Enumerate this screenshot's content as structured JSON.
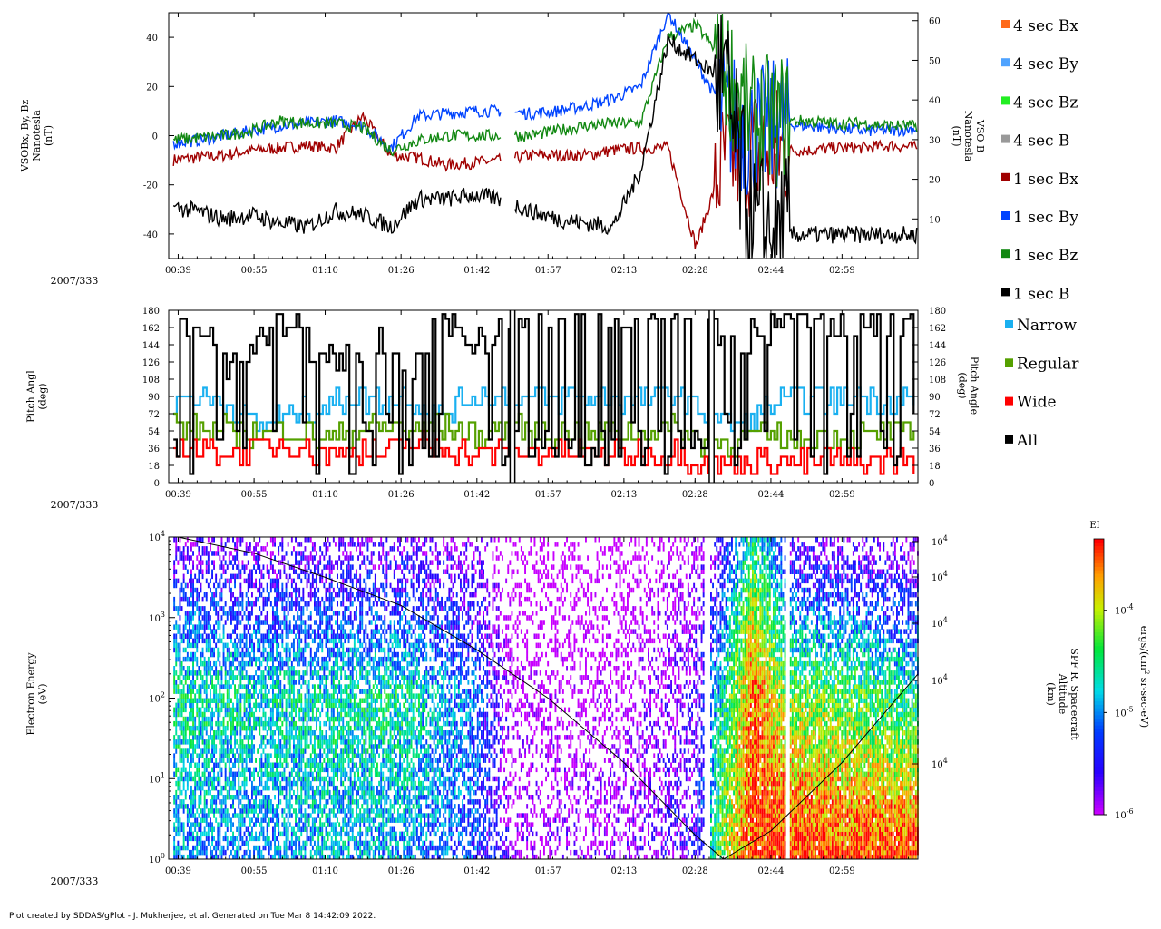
{
  "chart_data": [
    {
      "type": "line",
      "panel": "magnetometer",
      "ylabel_left": [
        "VSOBx, By, Bz",
        "Nanotesla",
        "(nT)"
      ],
      "ylabel_right": [
        "VSO B",
        "Nanotesla",
        "(nT)"
      ],
      "ylim_left": [
        -50,
        50
      ],
      "yticks_left": [
        -40,
        -20,
        0,
        20,
        40
      ],
      "ylim_right": [
        0,
        62
      ],
      "yticks_right": [
        10,
        20,
        30,
        40,
        50,
        60
      ],
      "date_label": "2007/333",
      "xlim": [
        "00:37",
        "03:15"
      ],
      "xticks": [
        "00:39",
        "00:55",
        "01:10",
        "01:26",
        "01:42",
        "01:57",
        "02:13",
        "02:28",
        "02:44",
        "02:59"
      ],
      "gap": [
        "01:47",
        "01:50"
      ],
      "legend": [
        "4 sec Bx",
        "4 sec By",
        "4 sec Bz",
        "4 sec B",
        "1 sec Bx",
        "1 sec By",
        "1 sec Bz",
        "1 sec B"
      ],
      "legend_colors": [
        "#ff6a1a",
        "#4fa3ff",
        "#22ee22",
        "#999999",
        "#a00000",
        "#0044ff",
        "#118811",
        "#000000"
      ],
      "series": [
        {
          "name": "1 sec Bx",
          "color": "#a00000",
          "values": [
            -10,
            -9,
            -8,
            -6,
            -5,
            -4,
            -5,
            8,
            -8,
            -9,
            -12,
            -11,
            -10,
            -8,
            -8,
            -8,
            -6,
            -5,
            -5,
            -45,
            -10,
            -6,
            -6,
            -6,
            -5,
            -5,
            -4,
            -5
          ]
        },
        {
          "name": "1 sec By",
          "color": "#0044ff",
          "values": [
            -3,
            -2,
            0,
            2,
            4,
            5,
            6,
            4,
            -5,
            8,
            9,
            10,
            10,
            9,
            10,
            12,
            15,
            20,
            50,
            30,
            10,
            0,
            5,
            4,
            3,
            2,
            2,
            3
          ]
        },
        {
          "name": "1 sec Bz",
          "color": "#118811",
          "values": [
            -2,
            -1,
            0,
            2,
            6,
            5,
            5,
            3,
            -6,
            -2,
            0,
            0,
            0,
            0,
            2,
            4,
            5,
            5,
            40,
            45,
            30,
            5,
            6,
            6,
            5,
            5,
            4,
            4
          ]
        },
        {
          "name": "1 sec B",
          "color": "#000000",
          "axis": "right",
          "values": [
            13,
            12,
            10,
            11,
            9,
            8,
            12,
            11,
            8,
            15,
            15,
            16,
            15,
            12,
            10,
            9,
            8,
            22,
            55,
            50,
            45,
            6,
            6,
            6,
            6,
            6,
            6,
            6
          ]
        }
      ]
    },
    {
      "type": "line",
      "panel": "pitch-angle",
      "ylabel_left": [
        "Pitch Angl",
        "(deg)"
      ],
      "ylabel_right": [
        "Pitch Angle",
        "(deg)"
      ],
      "ylim": [
        0,
        180
      ],
      "yticks": [
        0,
        18,
        36,
        54,
        72,
        90,
        108,
        126,
        144,
        162,
        180
      ],
      "date_label": "2007/333",
      "xlim": [
        "00:37",
        "03:15"
      ],
      "xticks": [
        "00:39",
        "00:55",
        "01:10",
        "01:26",
        "01:42",
        "01:57",
        "02:13",
        "02:28",
        "02:44",
        "02:59"
      ],
      "gaps": [
        [
          "01:49",
          "01:50"
        ],
        [
          "02:31",
          "02:32"
        ]
      ],
      "legend": [
        "Narrow",
        "Regular",
        "Wide",
        "All"
      ],
      "legend_colors": [
        "#1ab0f0",
        "#55a000",
        "#ff0000",
        "#000000"
      ],
      "series": [
        {
          "name": "Narrow",
          "color": "#1ab0f0",
          "values": [
            85,
            90,
            80,
            60,
            72,
            80,
            90,
            85,
            90,
            70,
            90,
            90,
            90,
            88,
            90,
            85,
            90,
            92,
            70,
            60,
            80,
            90,
            85,
            90,
            88,
            85
          ]
        },
        {
          "name": "Regular",
          "color": "#55a000",
          "values": [
            60,
            54,
            55,
            50,
            54,
            48,
            50,
            60,
            54,
            60,
            50,
            55,
            54,
            52,
            50,
            55,
            54,
            55,
            40,
            45,
            48,
            45,
            50,
            48,
            50,
            50
          ]
        },
        {
          "name": "Wide",
          "color": "#ff0000",
          "values": [
            40,
            36,
            30,
            36,
            40,
            30,
            35,
            30,
            40,
            36,
            30,
            32,
            30,
            32,
            30,
            30,
            30,
            30,
            15,
            20,
            25,
            20,
            25,
            20,
            25,
            22
          ]
        },
        {
          "name": "All",
          "color": "#000000",
          "values": [
            170,
            160,
            120,
            150,
            170,
            140,
            130,
            150,
            100,
            170,
            150,
            160,
            150,
            140,
            150,
            160,
            150,
            120,
            170,
            150,
            160,
            170,
            165,
            170,
            168,
            172
          ]
        }
      ]
    },
    {
      "type": "heatmap",
      "panel": "electron-spectrogram",
      "ylabel_left": [
        "Electron Energy",
        "(eV)"
      ],
      "ylabel_right": [
        "SPF R. Spacecraft",
        "Altitude",
        "(km)"
      ],
      "ylim": [
        1,
        10000
      ],
      "yscale": "log",
      "yticks_left": [
        "10^0",
        "10^1",
        "10^2",
        "10^3",
        "10^4"
      ],
      "yticks_right": [
        "10^4",
        "10^4",
        "10^4",
        "10^4",
        "10^4"
      ],
      "date_label": "2007/333",
      "xlim": [
        "00:37",
        "03:15"
      ],
      "xticks": [
        "00:39",
        "00:55",
        "01:10",
        "01:26",
        "01:42",
        "01:57",
        "02:13",
        "02:28",
        "02:44",
        "02:59"
      ],
      "colorbar_title": "EI",
      "colorbar_label": "ergs/(cm^2 sr-sec-eV)",
      "colorbar_ticks": [
        "10^-4",
        "10^-5",
        "10^-6"
      ],
      "colorbar_range": [
        1e-06,
        0.0005
      ],
      "intensity_profile": {
        "comment": "typical log10 intensity per time segment across energy bins (low energy first)",
        "times": [
          "00:37",
          "00:55",
          "01:10",
          "01:26",
          "01:42",
          "01:50",
          "02:13",
          "02:28",
          "02:33",
          "02:40",
          "02:48",
          "02:59",
          "03:15"
        ],
        "low_energy": [
          -5.0,
          -5.1,
          -4.9,
          -5.0,
          -5.3,
          -6.0,
          -6.0,
          -5.6,
          -4.2,
          -3.4,
          -3.3,
          -3.4,
          -3.3
        ],
        "mid_energy": [
          -4.6,
          -4.7,
          -4.7,
          -4.6,
          -5.2,
          -6.2,
          -6.2,
          -5.8,
          -4.8,
          -3.5,
          -4.2,
          -4.3,
          -4.6
        ],
        "high_energy": [
          -5.8,
          -5.9,
          -5.9,
          -5.8,
          -6.0,
          -6.5,
          -6.4,
          -6.2,
          -5.8,
          -4.5,
          -5.8,
          -5.9,
          -6.0
        ]
      },
      "altitude_curve": {
        "comment": "spacecraft altitude trace drawn as black line; value in log10 energy-axis units",
        "times": [
          "00:39",
          "00:55",
          "01:10",
          "01:26",
          "01:42",
          "01:57",
          "02:13",
          "02:28",
          "02:34",
          "02:44",
          "02:59",
          "03:15"
        ],
        "log_level": [
          4.0,
          3.8,
          3.5,
          3.15,
          2.6,
          2.0,
          1.2,
          0.3,
          0.0,
          0.35,
          1.2,
          2.3
        ]
      }
    }
  ],
  "footer": "Plot created by SDDAS/gPlot - J. Mukherjee, et al.  Generated on Tue Mar 8 14:42:09 2022."
}
